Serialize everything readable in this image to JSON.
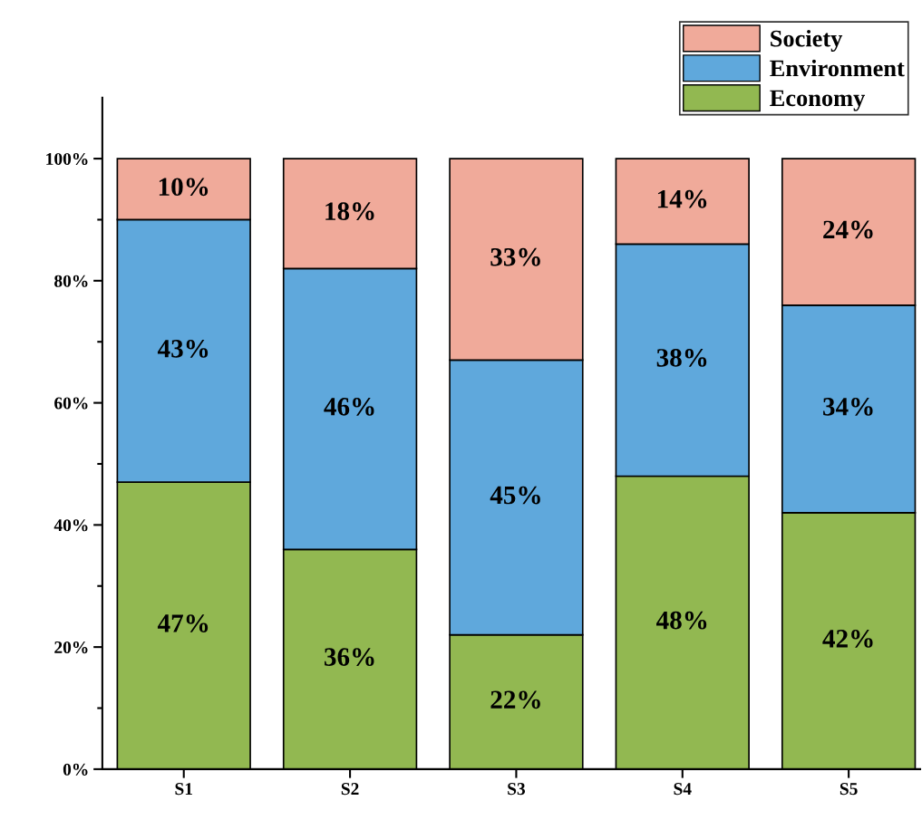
{
  "chart_data": {
    "type": "bar",
    "stacked": true,
    "categories": [
      "S1",
      "S2",
      "S3",
      "S4",
      "S5"
    ],
    "series": [
      {
        "name": "Economy",
        "color": "#92b851",
        "values": [
          47,
          36,
          22,
          48,
          42
        ],
        "value_labels": [
          "47%",
          "36%",
          "22%",
          "48%",
          "42%"
        ]
      },
      {
        "name": "Environment",
        "color": "#5fa8dc",
        "values": [
          43,
          46,
          45,
          38,
          34
        ],
        "value_labels": [
          "43%",
          "46%",
          "45%",
          "38%",
          "34%"
        ]
      },
      {
        "name": "Society",
        "color": "#f0aa9a",
        "values": [
          10,
          18,
          33,
          14,
          24
        ],
        "value_labels": [
          "10%",
          "18%",
          "33%",
          "14%",
          "24%"
        ]
      }
    ],
    "ylim": [
      0,
      110
    ],
    "yticks": [
      {
        "value": 0,
        "label": "0%"
      },
      {
        "value": 10,
        "label": null
      },
      {
        "value": 20,
        "label": "20%"
      },
      {
        "value": 30,
        "label": null
      },
      {
        "value": 40,
        "label": "40%"
      },
      {
        "value": 50,
        "label": null
      },
      {
        "value": 60,
        "label": "60%"
      },
      {
        "value": 70,
        "label": null
      },
      {
        "value": 80,
        "label": "80%"
      },
      {
        "value": 90,
        "label": null
      },
      {
        "value": 100,
        "label": "100%"
      }
    ],
    "grid": false,
    "legend": "top right"
  }
}
